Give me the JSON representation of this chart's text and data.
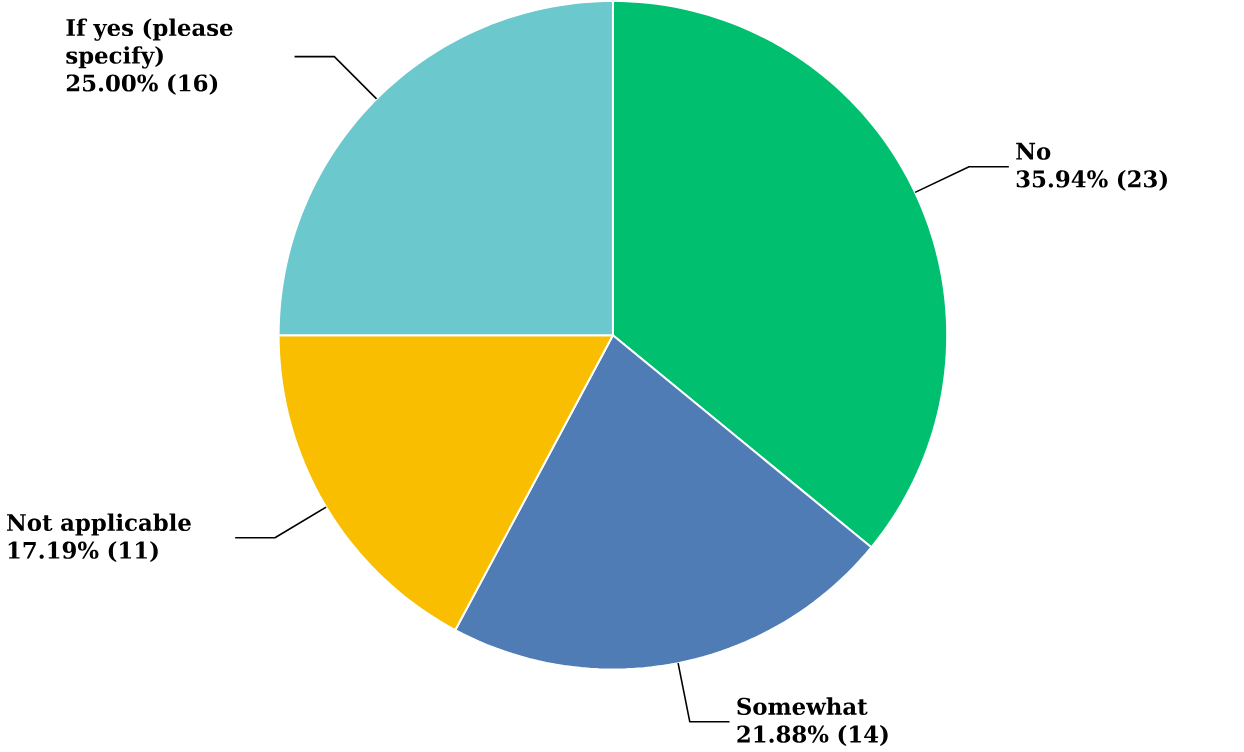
{
  "chart_data": {
    "type": "pie",
    "categories": [
      "No",
      "Somewhat",
      "Not applicable",
      "If yes (please specify)"
    ],
    "values": [
      35.94,
      21.88,
      17.19,
      25.0
    ],
    "value_labels": [
      "35.94% (23)",
      "21.88% (14)",
      "17.19% (11)",
      "25.00% (16)"
    ],
    "colors": [
      "#00bf6f",
      "#507cb6",
      "#f9be00",
      "#6bc8cd"
    ]
  }
}
